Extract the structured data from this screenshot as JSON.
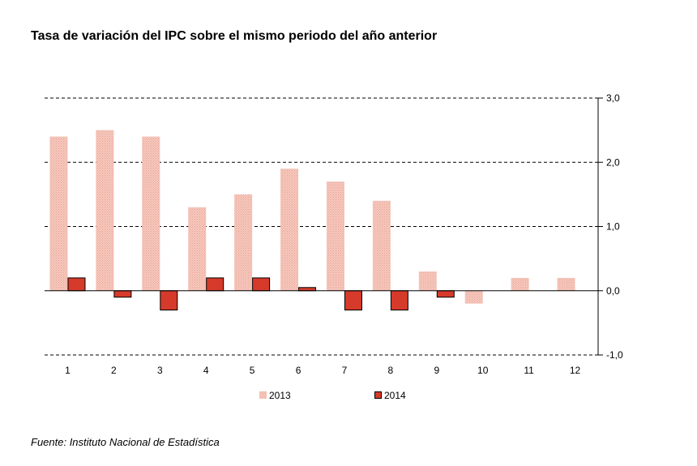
{
  "chart_data": {
    "type": "bar",
    "title": "Tasa de variación del IPC sobre el mismo periodo del año anterior",
    "xlabel": "",
    "ylabel": "",
    "categories": [
      "1",
      "2",
      "3",
      "4",
      "5",
      "6",
      "7",
      "8",
      "9",
      "10",
      "11",
      "12"
    ],
    "series": [
      {
        "name": "2013",
        "color": "#f2b8ab",
        "values": [
          2.4,
          2.5,
          2.4,
          1.3,
          1.5,
          1.9,
          1.7,
          1.4,
          0.3,
          -0.2,
          0.2,
          0.2
        ]
      },
      {
        "name": "2014",
        "color": "#d63a2a",
        "values": [
          0.2,
          -0.1,
          -0.3,
          0.2,
          0.2,
          0.05,
          -0.3,
          -0.3,
          -0.1,
          null,
          null,
          null
        ]
      }
    ],
    "ylim": [
      -1.0,
      3.0
    ],
    "yticks": [
      3.0,
      2.0,
      1.0,
      0.0,
      -1.0
    ],
    "ytick_labels": [
      "3,0",
      "2,0",
      "1,0",
      "0,0",
      "-1,0"
    ],
    "grid": true,
    "legend": "bottom-center",
    "source": "Fuente: Instituto Nacional de Estadística"
  }
}
